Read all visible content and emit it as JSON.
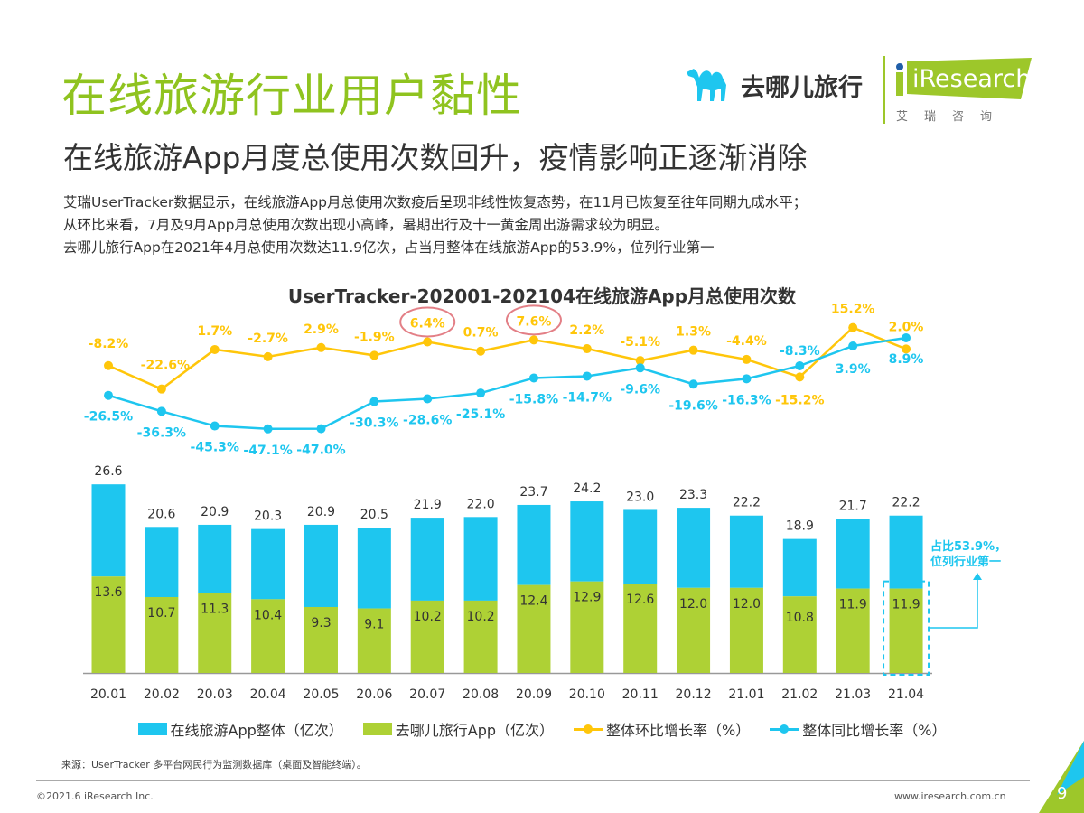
{
  "header": {
    "title": "在线旅游行业用户黏性",
    "subtitle": "在线旅游App月度总使用次数回升，疫情影响正逐渐消除",
    "body_lines": [
      "艾瑞UserTracker数据显示，在线旅游App月总使用次数疫后呈现非线性恢复态势，在11月已恢复至往年同期九成水平；",
      "从环比来看，7月及9月App月总使用次数出现小高峰，暑期出行及十一黄金周出游需求较为明显。",
      "去哪儿旅行App在2021年4月总使用次数达11.9亿次，占当月整体在线旅游App的53.9%，位列行业第一"
    ]
  },
  "logos": {
    "qunar": "去哪儿旅行",
    "iresearch": "iResearch",
    "iresearch_cn": "艾瑞咨询"
  },
  "chart_data": {
    "type": "bar+line",
    "title": "UserTracker-202001-202104在线旅游App月总使用次数",
    "categories": [
      "20.01",
      "20.02",
      "20.03",
      "20.04",
      "20.05",
      "20.06",
      "20.07",
      "20.08",
      "20.09",
      "20.10",
      "20.11",
      "20.12",
      "21.01",
      "21.02",
      "21.03",
      "21.04"
    ],
    "series": [
      {
        "name": "在线旅游App整体（亿次）",
        "type": "bar",
        "color": "#1ec6ef",
        "values": [
          26.6,
          20.6,
          20.9,
          20.3,
          20.9,
          20.5,
          21.9,
          22.0,
          23.7,
          24.2,
          23.0,
          23.3,
          22.2,
          18.9,
          21.7,
          22.2
        ]
      },
      {
        "name": "去哪儿旅行App（亿次）",
        "type": "bar",
        "color": "#aed135",
        "values": [
          13.6,
          10.7,
          11.3,
          10.4,
          9.3,
          9.1,
          10.2,
          10.2,
          12.4,
          12.9,
          12.6,
          12.0,
          12.0,
          10.8,
          11.9,
          11.9
        ]
      },
      {
        "name": "整体环比增长率（%）",
        "type": "line",
        "color": "#ffc60a",
        "values": [
          -8.2,
          -22.6,
          1.7,
          -2.7,
          2.9,
          -1.9,
          6.4,
          0.7,
          7.6,
          2.2,
          -5.1,
          1.3,
          -4.4,
          -15.2,
          15.2,
          2.0
        ]
      },
      {
        "name": "整体同比增长率（%）",
        "type": "line",
        "color": "#1ec6ef",
        "values": [
          -26.5,
          -36.3,
          -45.3,
          -47.1,
          -47.0,
          -30.3,
          -28.6,
          -25.1,
          -15.8,
          -14.7,
          -9.6,
          -19.6,
          -16.3,
          -8.3,
          3.9,
          8.9
        ]
      }
    ],
    "highlighted_points": [
      "20.07",
      "20.09"
    ],
    "highlight_color": "#e37f86",
    "annotation": {
      "category": "21.04",
      "lines": [
        "占比53.9%，",
        "位列行业第一"
      ]
    },
    "legend_placement": "bottom",
    "grid": false
  },
  "footer": {
    "source": "来源：UserTracker 多平台网民行为监测数据库（桌面及智能终端）。",
    "copyright": "©2021.6 iResearch Inc.",
    "website": "www.iresearch.com.cn",
    "page_number": "9"
  }
}
